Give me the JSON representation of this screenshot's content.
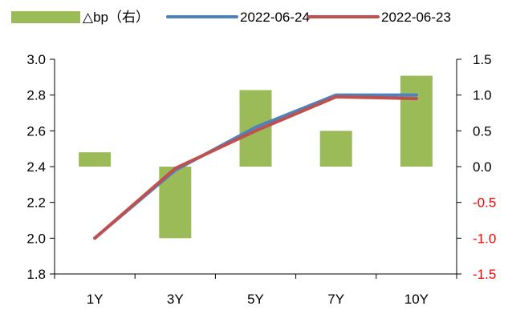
{
  "chart_data": {
    "type": "bar+line",
    "categories": [
      "1Y",
      "3Y",
      "5Y",
      "7Y",
      "10Y"
    ],
    "series": [
      {
        "name": "△bp（右）",
        "type": "bar",
        "axis": "right",
        "color": "#9bbb59",
        "values": [
          0.2,
          -1.0,
          1.07,
          0.5,
          1.27
        ]
      },
      {
        "name": "2022-06-24",
        "type": "line",
        "axis": "left",
        "color": "#4f81bd",
        "values": [
          2.0,
          2.38,
          2.62,
          2.8,
          2.8
        ]
      },
      {
        "name": "2022-06-23",
        "type": "line",
        "axis": "left",
        "color": "#c0504d",
        "values": [
          2.0,
          2.39,
          2.6,
          2.79,
          2.78
        ]
      }
    ],
    "y_left": {
      "ylim": [
        1.8,
        3.0
      ],
      "ticks": [
        "1.8",
        "2.0",
        "2.2",
        "2.4",
        "2.6",
        "2.8",
        "3.0"
      ]
    },
    "y_right": {
      "ylim": [
        -1.5,
        1.5
      ],
      "ticks": [
        "-1.5",
        "-1.0",
        "-0.5",
        "0.0",
        "0.5",
        "1.0",
        "1.5"
      ],
      "negative_color": "#ff0000",
      "positive_color": "#000000"
    },
    "legend": {
      "placement": "top",
      "entries": [
        "△bp（右）",
        "2022-06-24",
        "2022-06-23"
      ]
    },
    "grid": false,
    "title": "",
    "xlabel": "",
    "ylabel": ""
  }
}
